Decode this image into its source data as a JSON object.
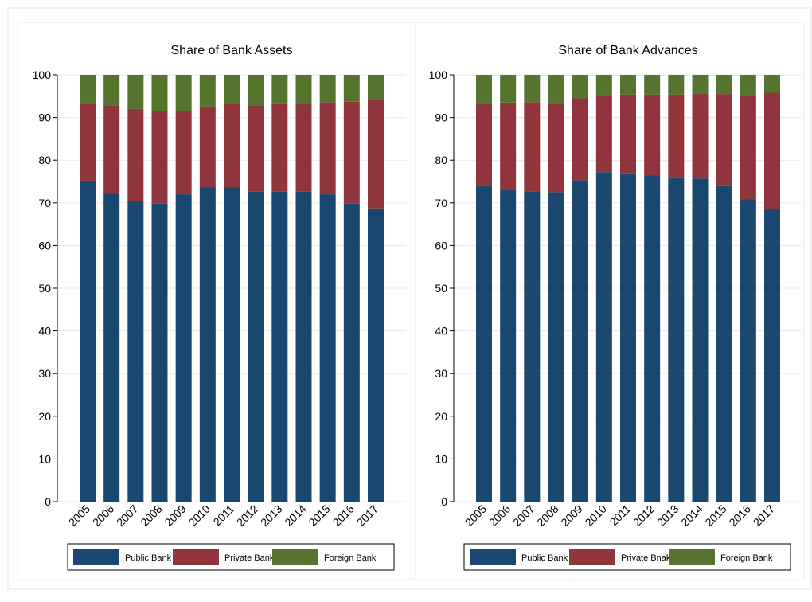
{
  "chart_data": [
    {
      "type": "bar",
      "stacked": true,
      "title": "Share of Bank Assets",
      "categories": [
        "2005",
        "2006",
        "2007",
        "2008",
        "2009",
        "2010",
        "2011",
        "2012",
        "2013",
        "2014",
        "2015",
        "2016",
        "2017"
      ],
      "series": [
        {
          "name": "Public Bank",
          "color": "#1a476f",
          "values": [
            75.2,
            72.3,
            70.5,
            69.8,
            72.0,
            73.6,
            73.6,
            72.6,
            72.6,
            72.6,
            72.0,
            69.8,
            68.7
          ]
        },
        {
          "name": "Private Bank",
          "color": "#90353b",
          "values": [
            18.2,
            20.5,
            21.5,
            21.7,
            19.5,
            19.0,
            19.5,
            20.2,
            20.7,
            20.5,
            21.6,
            23.9,
            25.4
          ]
        },
        {
          "name": "Foreign Bank",
          "color": "#55752f",
          "values": [
            6.6,
            7.2,
            8.0,
            8.5,
            8.5,
            7.4,
            6.9,
            7.2,
            6.7,
            6.9,
            6.4,
            6.3,
            5.9
          ]
        }
      ],
      "ylim": [
        0,
        100
      ],
      "yticks": [
        0,
        10,
        20,
        30,
        40,
        50,
        60,
        70,
        80,
        90,
        100
      ],
      "grid": true
    },
    {
      "type": "bar",
      "stacked": true,
      "title": "Share of Bank Advances",
      "categories": [
        "2005",
        "2006",
        "2007",
        "2008",
        "2009",
        "2010",
        "2011",
        "2012",
        "2013",
        "2014",
        "2015",
        "2016",
        "2017"
      ],
      "series": [
        {
          "name": "Public Bank",
          "color": "#1a476f",
          "values": [
            74.2,
            73.0,
            72.7,
            72.5,
            75.3,
            77.2,
            76.9,
            76.4,
            76.0,
            75.7,
            74.1,
            70.8,
            68.5
          ]
        },
        {
          "name": "Private Bnak",
          "color": "#90353b",
          "values": [
            19.2,
            20.5,
            20.9,
            20.9,
            19.2,
            18.1,
            18.5,
            19.0,
            19.4,
            19.9,
            21.4,
            24.5,
            27.3
          ]
        },
        {
          "name": "Foreign Bank",
          "color": "#55752f",
          "values": [
            6.6,
            6.5,
            6.4,
            6.6,
            5.5,
            4.7,
            4.6,
            4.6,
            4.6,
            4.4,
            4.5,
            4.7,
            4.2
          ]
        }
      ],
      "ylim": [
        0,
        100
      ],
      "yticks": [
        0,
        10,
        20,
        30,
        40,
        50,
        60,
        70,
        80,
        90,
        100
      ],
      "grid": true
    }
  ]
}
